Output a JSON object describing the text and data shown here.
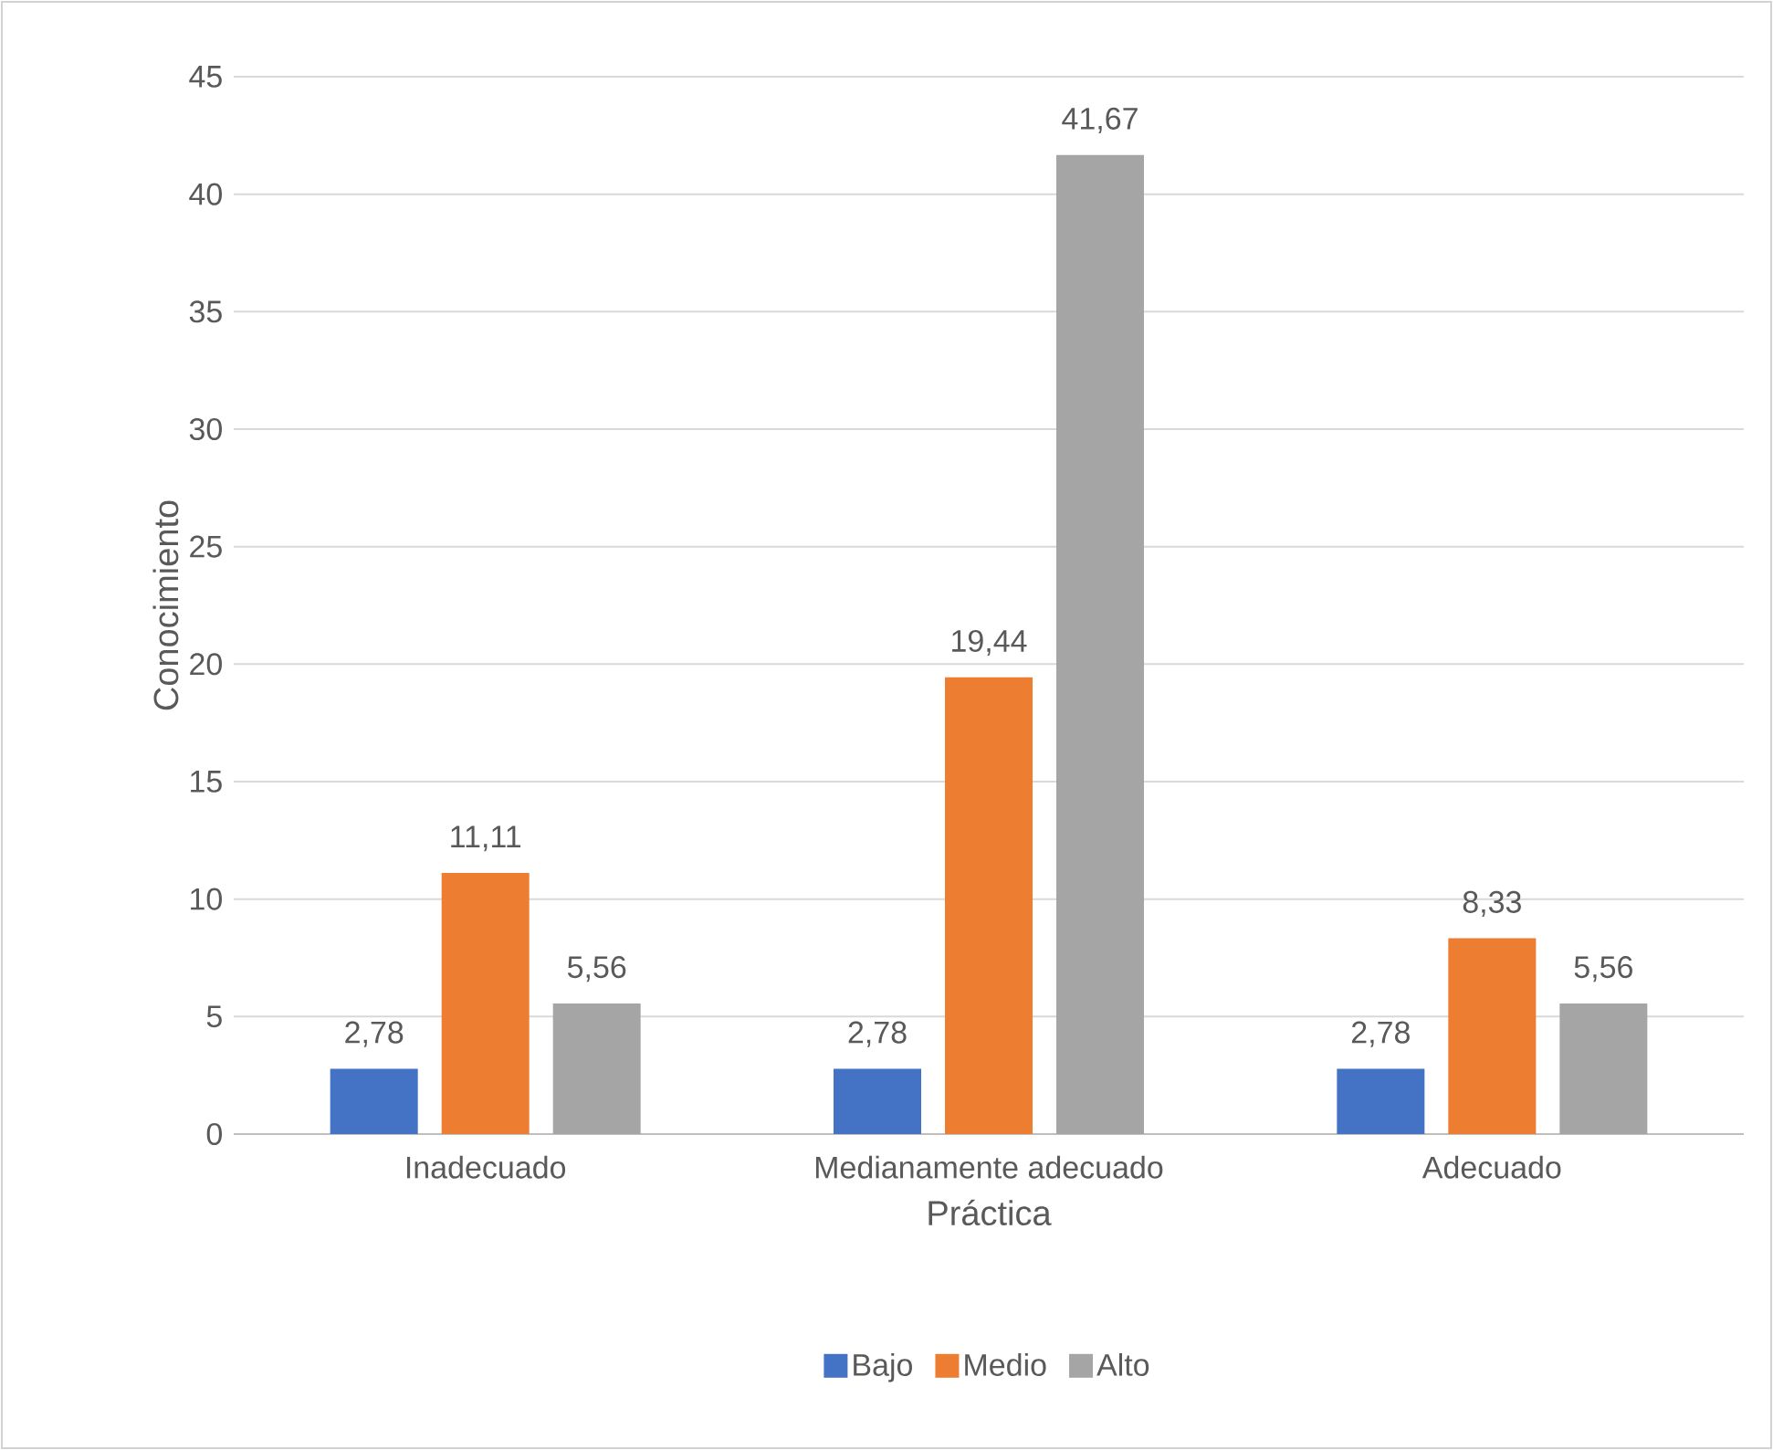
{
  "chart_data": {
    "type": "bar",
    "xlabel": "Práctica",
    "ylabel": "Conocimiento",
    "categories": [
      "Inadecuado",
      "Medianamente adecuado",
      "Adecuado"
    ],
    "series": [
      {
        "name": "Bajo",
        "color": "#4472c4",
        "values": [
          2.78,
          2.78,
          2.78
        ],
        "value_labels": [
          "2,78",
          "2,78",
          "2,78"
        ]
      },
      {
        "name": "Medio",
        "color": "#ed7d31",
        "values": [
          11.11,
          19.44,
          8.33
        ],
        "value_labels": [
          "11,11",
          "19,44",
          "8,33"
        ]
      },
      {
        "name": "Alto",
        "color": "#a5a5a5",
        "values": [
          5.56,
          41.67,
          5.56
        ],
        "value_labels": [
          "5,56",
          "41,67",
          "5,56"
        ]
      }
    ],
    "ylim": [
      0,
      45
    ],
    "yticks": [
      0,
      5,
      10,
      15,
      20,
      25,
      30,
      35,
      40,
      45
    ],
    "grid": "y",
    "legend": "bottom"
  }
}
